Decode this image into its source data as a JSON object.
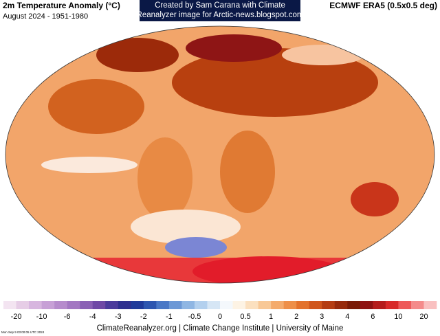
{
  "header": {
    "title": "2m Temperature Anomaly (°C)",
    "subtitle": "August 2024 - 1951-1980",
    "credit": [
      "Created by Sam Carana with Climate",
      "Reanalyzer image for Arctic-news.blogspot.com"
    ],
    "dataset": "ECMWF ERA5 (0.5x0.5 deg)"
  },
  "legend": {
    "ticks": [
      -20,
      -10,
      -6,
      -4,
      -3,
      -2,
      -1,
      -0.5,
      0,
      0.5,
      1,
      2,
      3,
      4,
      6,
      10,
      20
    ],
    "colors": [
      "#f3e4f1",
      "#e6cde6",
      "#d7b6df",
      "#c7a0d6",
      "#b68bcc",
      "#a377c2",
      "#8a60b5",
      "#6f48a6",
      "#4b3a9c",
      "#2e2f8f",
      "#1f3a9a",
      "#2d56b0",
      "#4a78c6",
      "#6c98d6",
      "#8fb6e3",
      "#b3d0ee",
      "#d6e6f5",
      "#f4f8fc",
      "#fdf3e4",
      "#fbe0bf",
      "#f8c896",
      "#f4ab6c",
      "#ee8f48",
      "#e3722c",
      "#d0561c",
      "#b53d12",
      "#972a0b",
      "#7a1b06",
      "#8e1212",
      "#b51c1c",
      "#d82a2a",
      "#ee5a5a",
      "#f48b8b",
      "#f9c0c0"
    ]
  },
  "footer": {
    "source": "ClimateReanalyzer.org | Climate Change Institute | University of Maine",
    "timestamp": "Mon Sep  9 03:00:05 UTC 2024"
  }
}
